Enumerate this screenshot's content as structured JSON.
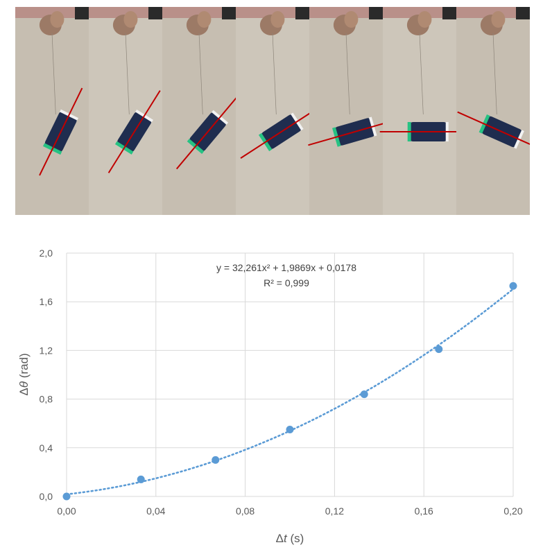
{
  "photo_strip": {
    "frame_count": 7,
    "description_icon": "photo-sequence",
    "background_color": "#c9c1b4",
    "marker_line_color": "#c00000",
    "frame_angles_deg": [
      -64,
      -58,
      -50,
      -33,
      -16,
      0,
      24
    ]
  },
  "chart_data": {
    "type": "scatter",
    "xlabel_main": "Δ",
    "xlabel_var": "t",
    "xlabel_unit": " (s)",
    "ylabel_main": "Δ",
    "ylabel_var": "θ",
    "ylabel_unit": " (rad)",
    "xlim": [
      0,
      0.2
    ],
    "ylim": [
      0,
      2.0
    ],
    "x_ticks": [
      "0,00",
      "0,04",
      "0,08",
      "0,12",
      "0,16",
      "0,20"
    ],
    "y_ticks": [
      "0,0",
      "0,4",
      "0,8",
      "1,2",
      "1,6",
      "2,0"
    ],
    "series": [
      {
        "x": [
          0.0,
          0.0333,
          0.0667,
          0.1,
          0.1333,
          0.1667,
          0.2
        ],
        "y": [
          0.0,
          0.14,
          0.3,
          0.55,
          0.84,
          1.21,
          1.73
        ]
      }
    ],
    "trendline": {
      "type": "polynomial",
      "a": 32.261,
      "b": 1.9869,
      "c": 0.0178
    },
    "equation_text": "y = 32,261x² + 1,9869x + 0,0178",
    "r2_text": "R² = 0,999",
    "grid": true,
    "colors": {
      "points": "#5b9bd5",
      "trendline": "#5b9bd5",
      "grid": "#d9d9d9",
      "text": "#595959"
    }
  }
}
